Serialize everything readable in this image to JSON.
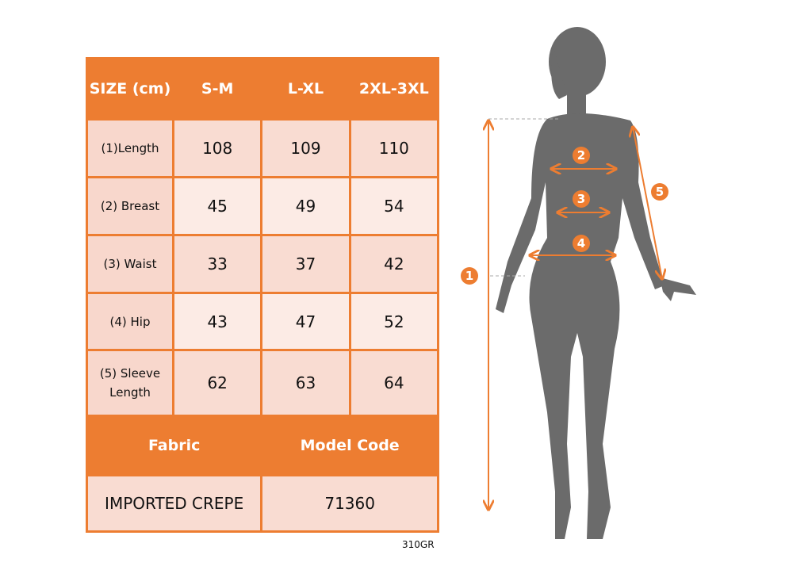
{
  "table": {
    "header": [
      "SIZE (cm)",
      "S-M",
      "L-XL",
      "2XL-3XL"
    ],
    "rows": [
      {
        "label": "(1)Length",
        "values": [
          "108",
          "109",
          "110"
        ]
      },
      {
        "label": "(2) Breast",
        "values": [
          "45",
          "49",
          "54"
        ]
      },
      {
        "label": "(3) Waist",
        "values": [
          "33",
          "37",
          "42"
        ]
      },
      {
        "label": "(4) Hip",
        "values": [
          "43",
          "47",
          "52"
        ]
      },
      {
        "label": "(5) Sleeve Length",
        "values": [
          "62",
          "63",
          "64"
        ]
      }
    ],
    "footer_header": [
      "Fabric",
      "Model Code"
    ],
    "footer_values": [
      "IMPORTED CREPE",
      "71360"
    ]
  },
  "product_code": "310GR",
  "figure": {
    "markers": [
      "1",
      "2",
      "3",
      "4",
      "5"
    ],
    "accent_color": "#ed7d31",
    "silhouette_color": "#6b6b6b"
  }
}
